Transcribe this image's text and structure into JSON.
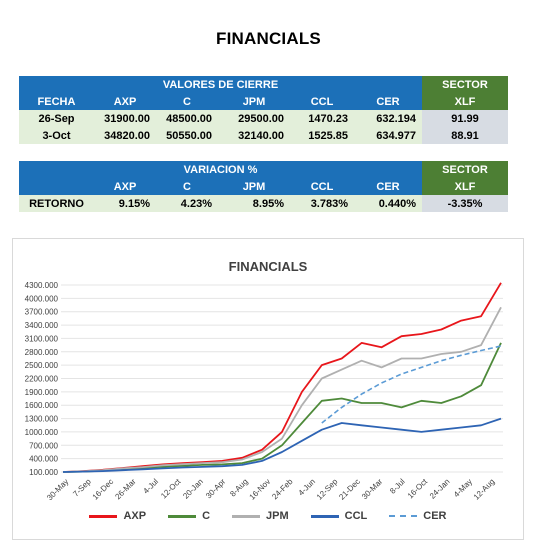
{
  "page_title": "FINANCIALS",
  "table1": {
    "group_header": "VALORES DE CIERRE",
    "sector_header": "SECTOR",
    "columns": [
      "FECHA",
      "AXP",
      "C",
      "JPM",
      "CCL",
      "CER",
      "XLF"
    ],
    "rows": [
      {
        "fecha": "26-Sep",
        "axp": "31900.00",
        "c": "48500.00",
        "jpm": "29500.00",
        "ccl": "1470.23",
        "cer": "632.194",
        "xlf": "91.99"
      },
      {
        "fecha": "3-Oct",
        "axp": "34820.00",
        "c": "50550.00",
        "jpm": "32140.00",
        "ccl": "1525.85",
        "cer": "634.977",
        "xlf": "88.91"
      }
    ]
  },
  "table2": {
    "group_header": "VARIACION %",
    "sector_header": "SECTOR",
    "columns": [
      "",
      "AXP",
      "C",
      "JPM",
      "CCL",
      "CER",
      "XLF"
    ],
    "row": {
      "label": "RETORNO",
      "axp": "9.15%",
      "c": "4.23%",
      "jpm": "8.95%",
      "ccl": "3.783%",
      "cer": "0.440%",
      "xlf": "-3.35%"
    }
  },
  "chart_data": {
    "type": "line",
    "title": "FINANCIALS",
    "xlabel": "",
    "ylabel": "",
    "ylim": [
      100,
      4300
    ],
    "y_ticks": [
      "100.000",
      "400.000",
      "700.000",
      "1000.000",
      "1300.000",
      "1600.000",
      "1900.000",
      "2200.000",
      "2500.000",
      "2800.000",
      "3100.000",
      "3400.000",
      "3700.000",
      "4000.000",
      "4300.000"
    ],
    "x_ticks": [
      "30-May",
      "7-Sep",
      "16-Dec",
      "26-Mar",
      "4-Jul",
      "12-Oct",
      "20-Jan",
      "30-Apr",
      "8-Aug",
      "16-Nov",
      "24-Feb",
      "4-Jun",
      "12-Sep",
      "21-Dec",
      "30-Mar",
      "8-Jul",
      "16-Oct",
      "24-Jan",
      "4-May",
      "12-Aug"
    ],
    "grid": true,
    "legend_position": "bottom",
    "series": [
      {
        "name": "AXP",
        "color": "#e8161b",
        "style": "solid",
        "values": [
          100,
          120,
          150,
          190,
          230,
          270,
          300,
          320,
          350,
          420,
          600,
          1000,
          1900,
          2500,
          2650,
          3000,
          2900,
          3150,
          3200,
          3300,
          3500,
          3600,
          4350
        ]
      },
      {
        "name": "C",
        "color": "#4e8a3a",
        "style": "solid",
        "values": [
          100,
          110,
          130,
          160,
          190,
          220,
          240,
          260,
          270,
          300,
          400,
          700,
          1200,
          1700,
          1750,
          1650,
          1650,
          1550,
          1700,
          1650,
          1800,
          2050,
          3000
        ]
      },
      {
        "name": "JPM",
        "color": "#b0b0b0",
        "style": "solid",
        "values": [
          100,
          115,
          140,
          180,
          210,
          250,
          275,
          300,
          320,
          380,
          550,
          850,
          1600,
          2200,
          2400,
          2600,
          2450,
          2650,
          2650,
          2750,
          2800,
          2950,
          3800
        ]
      },
      {
        "name": "CCL",
        "color": "#2e64b4",
        "style": "solid",
        "values": [
          100,
          110,
          120,
          140,
          160,
          180,
          200,
          215,
          230,
          260,
          350,
          550,
          800,
          1050,
          1200,
          1150,
          1100,
          1050,
          1000,
          1050,
          1100,
          1150,
          1300
        ]
      },
      {
        "name": "CER",
        "color": "#5b9bd5",
        "style": "dashed",
        "values": [
          null,
          null,
          null,
          null,
          null,
          null,
          null,
          null,
          null,
          null,
          null,
          null,
          null,
          1200,
          1550,
          1850,
          2100,
          2300,
          2450,
          2600,
          2720,
          2830,
          2930
        ]
      }
    ]
  }
}
